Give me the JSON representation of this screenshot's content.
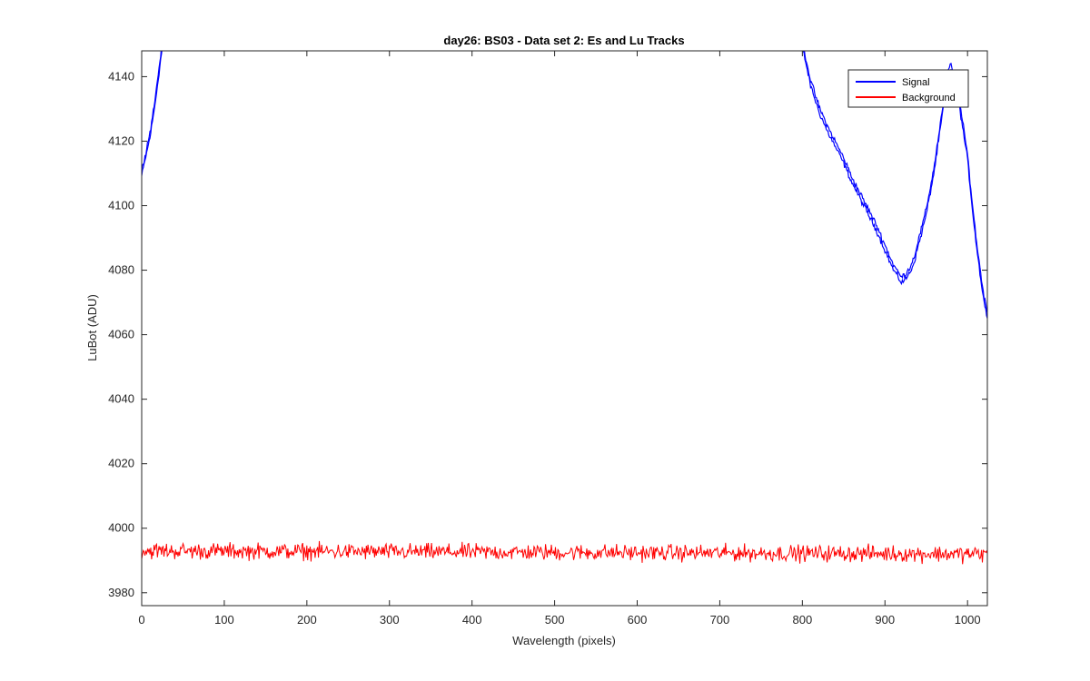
{
  "chart_data": {
    "type": "line",
    "title": "day26: BS03 - Data set 2: Es and Lu Tracks",
    "xlabel": "Wavelength (pixels)",
    "ylabel": "LuBot (ADU)",
    "xlim": [
      0,
      1024
    ],
    "ylim": [
      3976,
      4148
    ],
    "xticks": [
      0,
      100,
      200,
      300,
      400,
      500,
      600,
      700,
      800,
      900,
      1000
    ],
    "yticks": [
      3980,
      4000,
      4020,
      4040,
      4060,
      4080,
      4100,
      4120,
      4140
    ],
    "grid": false,
    "legend_position": "top-right",
    "series": [
      {
        "name": "Signal",
        "color": "#0000ff",
        "x": [
          0,
          5,
          10,
          15,
          20,
          25,
          30,
          800,
          810,
          820,
          830,
          840,
          850,
          860,
          870,
          880,
          890,
          900,
          910,
          915,
          920,
          925,
          930,
          935,
          940,
          950,
          960,
          970,
          975,
          980,
          985,
          990,
          1000,
          1005,
          1010,
          1015,
          1020,
          1024
        ],
        "y": [
          4110,
          4116,
          4122,
          4130,
          4140,
          4150,
          4158,
          4150,
          4138,
          4130,
          4124,
          4119,
          4114,
          4108,
          4103,
          4098,
          4093,
          4087,
          4081,
          4079,
          4077,
          4078,
          4080,
          4083,
          4088,
          4098,
          4112,
          4130,
          4140,
          4143,
          4138,
          4132,
          4115,
          4102,
          4090,
          4080,
          4071,
          4066
        ]
      },
      {
        "name": "Background",
        "color": "#ff0000",
        "x": [
          0,
          1024
        ],
        "y": [
          3993,
          3992
        ],
        "noise_amplitude": 2.5
      }
    ]
  }
}
